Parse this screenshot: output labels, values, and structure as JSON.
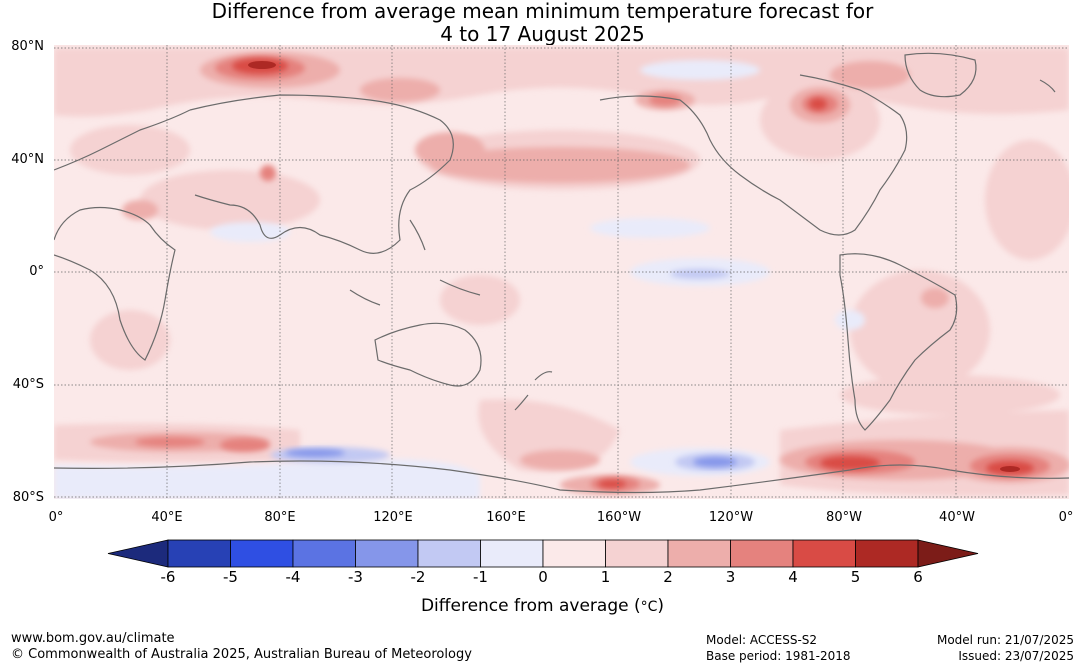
{
  "header": {
    "title_line1": "Difference from average mean minimum temperature forecast for",
    "title_line2": "4 to 17 August 2025"
  },
  "map": {
    "lat_labels": [
      "80°N",
      "40°N",
      "0°",
      "40°S",
      "80°S"
    ],
    "lon_labels": [
      "0°",
      "40°E",
      "80°E",
      "120°E",
      "160°E",
      "160°W",
      "120°W",
      "80°W",
      "40°W",
      "0°"
    ]
  },
  "colorbar": {
    "ticks": [
      "-6",
      "-5",
      "-4",
      "-3",
      "-2",
      "-1",
      "0",
      "1",
      "2",
      "3",
      "4",
      "5",
      "6"
    ],
    "colors": [
      "#1c2a7c",
      "#2741b5",
      "#2f4fe3",
      "#5b73e3",
      "#8596ea",
      "#c2c9f3",
      "#e9ebfa",
      "#fbe9e9",
      "#f5d2d2",
      "#edaeab",
      "#e5827e",
      "#d94b45",
      "#ad2924",
      "#7c1c18"
    ],
    "label": "Difference from average (",
    "label_unit": "°C",
    "label_close": ")"
  },
  "footer": {
    "url": "www.bom.gov.au/climate",
    "copyright": "© Commonwealth of Australia 2025, Australian Bureau of Meteorology",
    "model": "Model: ACCESS-S2",
    "base_period": "Base period: 1981-2018",
    "model_run": "Model run: 21/07/2025",
    "issued": "Issued: 23/07/2025"
  }
}
